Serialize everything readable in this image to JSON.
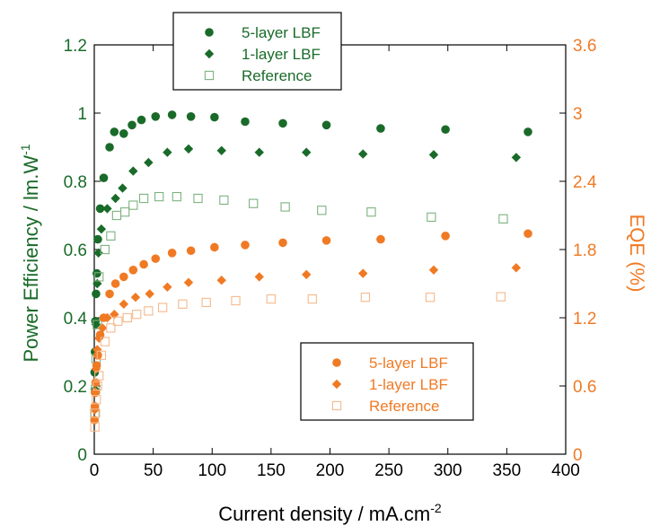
{
  "colors": {
    "green": "#1a6b2a",
    "orange": "#f07a24",
    "green_light": "#7cb27f",
    "orange_light": "#f5b98c",
    "axis": "#000000"
  },
  "chart_data": {
    "type": "scatter",
    "xlabel": "Current density / mA.cm",
    "xlabel_sup": "-2",
    "ylabel_left": "Power Efficiency / lm.W",
    "ylabel_left_sup": "-1",
    "ylabel_right": "EQE (%)",
    "xlim": [
      0,
      400
    ],
    "ylim_left": [
      0,
      1.2
    ],
    "ylim_right": [
      0,
      3.6
    ],
    "x_ticks": [
      "0",
      "50",
      "100",
      "150",
      "200",
      "250",
      "300",
      "350",
      "400"
    ],
    "y_left_ticks": [
      "0",
      "0.2",
      "0.4",
      "0.6",
      "0.8",
      "1",
      "1.2"
    ],
    "y_right_ticks": [
      "0",
      "0.6",
      "1.2",
      "1.8",
      "2.4",
      "3",
      "3.6"
    ],
    "legend_top": {
      "position": "top-left",
      "entries": [
        {
          "label": "5-layer LBF",
          "marker": "circle"
        },
        {
          "label": "1-layer LBF",
          "marker": "diamond"
        },
        {
          "label": "Reference",
          "marker": "square-open"
        }
      ]
    },
    "legend_bottom": {
      "position": "bottom-right",
      "entries": [
        {
          "label": "5-layer LBF",
          "marker": "circle"
        },
        {
          "label": "1-layer LBF",
          "marker": "diamond"
        },
        {
          "label": "Reference",
          "marker": "square-open"
        }
      ]
    },
    "series": [
      {
        "name": "5-layer LBF",
        "axis": "left",
        "marker": "circle",
        "color_key": "green",
        "points": [
          [
            0.3,
            0.24
          ],
          [
            0.6,
            0.3
          ],
          [
            1.0,
            0.39
          ],
          [
            1.5,
            0.47
          ],
          [
            2.2,
            0.53
          ],
          [
            3,
            0.63
          ],
          [
            5,
            0.72
          ],
          [
            8,
            0.81
          ],
          [
            13,
            0.9
          ],
          [
            17,
            0.945
          ],
          [
            25,
            0.94
          ],
          [
            32,
            0.965
          ],
          [
            40,
            0.98
          ],
          [
            52,
            0.99
          ],
          [
            66,
            0.995
          ],
          [
            82,
            0.99
          ],
          [
            102,
            0.988
          ],
          [
            128,
            0.975
          ],
          [
            160,
            0.97
          ],
          [
            197,
            0.965
          ],
          [
            243,
            0.955
          ],
          [
            298,
            0.952
          ],
          [
            368,
            0.945
          ]
        ]
      },
      {
        "name": "1-layer LBF",
        "axis": "left",
        "marker": "diamond",
        "color_key": "green",
        "points": [
          [
            0.5,
            0.19
          ],
          [
            1,
            0.3
          ],
          [
            1.5,
            0.38
          ],
          [
            2.5,
            0.5
          ],
          [
            3.5,
            0.59
          ],
          [
            6,
            0.66
          ],
          [
            11,
            0.72
          ],
          [
            18,
            0.75
          ],
          [
            24,
            0.78
          ],
          [
            33,
            0.83
          ],
          [
            46,
            0.855
          ],
          [
            62,
            0.885
          ],
          [
            80,
            0.895
          ],
          [
            108,
            0.89
          ],
          [
            140,
            0.885
          ],
          [
            180,
            0.885
          ],
          [
            228,
            0.88
          ],
          [
            288,
            0.878
          ],
          [
            358,
            0.87
          ]
        ]
      },
      {
        "name": "Reference",
        "axis": "left",
        "marker": "square-open",
        "color_key": "green_light",
        "points": [
          [
            0.5,
            0.12
          ],
          [
            1,
            0.19
          ],
          [
            1.5,
            0.28
          ],
          [
            2.5,
            0.38
          ],
          [
            4,
            0.52
          ],
          [
            9,
            0.6
          ],
          [
            14,
            0.64
          ],
          [
            19,
            0.7
          ],
          [
            26,
            0.71
          ],
          [
            33,
            0.73
          ],
          [
            42,
            0.75
          ],
          [
            55,
            0.755
          ],
          [
            70,
            0.755
          ],
          [
            88,
            0.75
          ],
          [
            110,
            0.745
          ],
          [
            135,
            0.735
          ],
          [
            162,
            0.725
          ],
          [
            193,
            0.715
          ],
          [
            235,
            0.71
          ],
          [
            286,
            0.695
          ],
          [
            347,
            0.69
          ]
        ]
      },
      {
        "name": "5-layer LBF",
        "axis": "right",
        "marker": "circle",
        "color_key": "orange",
        "points": [
          [
            0.2,
            0.3
          ],
          [
            0.5,
            0.42
          ],
          [
            0.8,
            0.54
          ],
          [
            1.2,
            0.63
          ],
          [
            2,
            0.78
          ],
          [
            3,
            0.87
          ],
          [
            5,
            1.05
          ],
          [
            8,
            1.2
          ],
          [
            13,
            1.41
          ],
          [
            18,
            1.5
          ],
          [
            25,
            1.56
          ],
          [
            33,
            1.62
          ],
          [
            42,
            1.67
          ],
          [
            52,
            1.72
          ],
          [
            66,
            1.77
          ],
          [
            82,
            1.79
          ],
          [
            102,
            1.82
          ],
          [
            128,
            1.84
          ],
          [
            160,
            1.86
          ],
          [
            197,
            1.88
          ],
          [
            243,
            1.89
          ],
          [
            298,
            1.92
          ],
          [
            368,
            1.94
          ]
        ]
      },
      {
        "name": "1-layer LBF",
        "axis": "right",
        "marker": "diamond",
        "color_key": "orange",
        "points": [
          [
            0.4,
            0.39
          ],
          [
            0.8,
            0.55
          ],
          [
            1.5,
            0.75
          ],
          [
            2.5,
            0.92
          ],
          [
            4,
            1.02
          ],
          [
            7,
            1.11
          ],
          [
            11,
            1.2
          ],
          [
            17,
            1.23
          ],
          [
            25,
            1.32
          ],
          [
            35,
            1.38
          ],
          [
            47,
            1.41
          ],
          [
            62,
            1.47
          ],
          [
            80,
            1.51
          ],
          [
            108,
            1.53
          ],
          [
            140,
            1.56
          ],
          [
            180,
            1.58
          ],
          [
            228,
            1.59
          ],
          [
            288,
            1.62
          ],
          [
            358,
            1.64
          ]
        ]
      },
      {
        "name": "Reference",
        "axis": "right",
        "marker": "square-open",
        "color_key": "orange_light",
        "points": [
          [
            0.5,
            0.24
          ],
          [
            1,
            0.36
          ],
          [
            1.7,
            0.48
          ],
          [
            2.7,
            0.6
          ],
          [
            4,
            0.69
          ],
          [
            6,
            0.87
          ],
          [
            9,
            0.99
          ],
          [
            14,
            1.11
          ],
          [
            20,
            1.17
          ],
          [
            28,
            1.2
          ],
          [
            36,
            1.23
          ],
          [
            46,
            1.26
          ],
          [
            58,
            1.29
          ],
          [
            75,
            1.32
          ],
          [
            95,
            1.335
          ],
          [
            120,
            1.35
          ],
          [
            150,
            1.365
          ],
          [
            185,
            1.365
          ],
          [
            230,
            1.38
          ],
          [
            285,
            1.38
          ],
          [
            345,
            1.385
          ]
        ]
      }
    ]
  }
}
